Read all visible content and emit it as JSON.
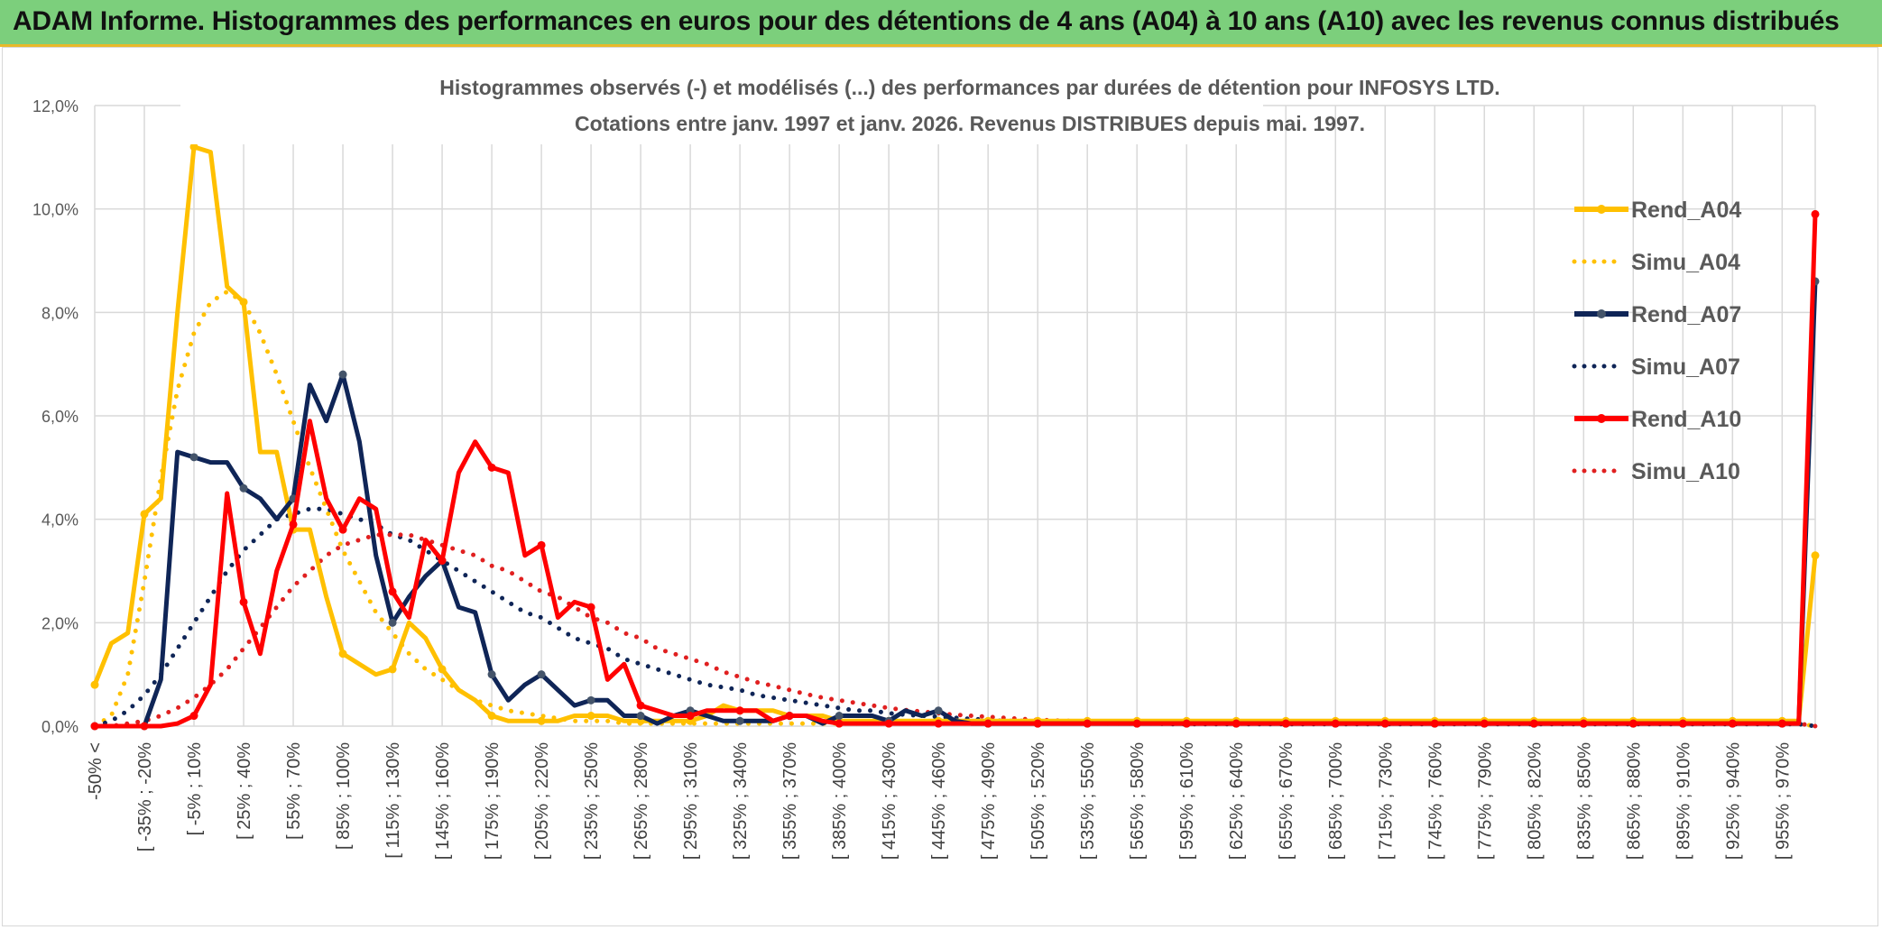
{
  "header": {
    "title": "ADAM Informe. Histogrammes des performances en euros pour des détentions de 4 ans (A04) à 10 ans (A10) avec les revenus connus distribués"
  },
  "chart_data": {
    "type": "line",
    "title": "Histogrammes observés (-) et modélisés (...) des performances par durées de détention pour INFOSYS LTD.",
    "subtitle": "Cotations entre janv. 1997 et janv. 2026. Revenus DISTRIBUES depuis mai. 1997.",
    "xlabel": "",
    "ylabel": "",
    "ylim": [
      0,
      12
    ],
    "yticks": [
      "0,0%",
      "2,0%",
      "4,0%",
      "6,0%",
      "8,0%",
      "10,0%",
      "12,0%"
    ],
    "legend_position": "right",
    "grid": true,
    "x_tick_labels": [
      "-50% <",
      "[ -35% ; -20%",
      "[ -5% ; 10%",
      "[ 25% ; 40%",
      "[ 55% ; 70%",
      "[ 85% ; 100%",
      "[ 115% ; 130%",
      "[ 145% ; 160%",
      "[ 175% ; 190%",
      "[ 205% ; 220%",
      "[ 235% ; 250%",
      "[ 265% ; 280%",
      "[ 295% ; 310%",
      "[ 325% ; 340%",
      "[ 355% ; 370%",
      "[ 385% ; 400%",
      "[ 415% ; 430%",
      "[ 445% ; 460%",
      "[ 475% ; 490%",
      "[ 505% ; 520%",
      "[ 535% ; 550%",
      "[ 565% ; 580%",
      "[ 595% ; 610%",
      "[ 625% ; 640%",
      "[ 655% ; 670%",
      "[ 685% ; 700%",
      "[ 715% ; 730%",
      "[ 745% ; 760%",
      "[ 775% ; 790%",
      "[ 805% ; 820%",
      "[ 835% ; 850%",
      "[ 865% ; 880%",
      "[ 895% ; 910%",
      "[ 925% ; 940%",
      "[ 955% ; 970%"
    ],
    "series": [
      {
        "name": "Rend_A04",
        "style": "solid",
        "color": "#ffc000",
        "values": [
          0.8,
          1.6,
          1.8,
          4.1,
          4.4,
          8.0,
          11.2,
          11.1,
          8.5,
          8.2,
          5.3,
          5.3,
          3.8,
          3.8,
          2.5,
          1.4,
          1.2,
          1.0,
          1.1,
          2.0,
          1.7,
          1.1,
          0.7,
          0.5,
          0.2,
          0.1,
          0.1,
          0.1,
          0.1,
          0.2,
          0.2,
          0.2,
          0.1,
          0.1,
          0.1,
          0.1,
          0.1,
          0.2,
          0.4,
          0.3,
          0.3,
          0.3,
          0.2,
          0.2,
          0.2,
          0.1,
          0.1,
          0.1,
          0.1,
          0.1,
          0.1,
          0.1,
          0.1,
          0.1,
          0.1,
          0.1,
          0.1,
          0.1,
          0.1,
          0.1,
          0.1,
          0.1,
          0.1,
          0.1,
          0.1,
          0.1,
          0.1,
          0.1,
          0.1,
          0.1,
          0.1,
          0.1,
          0.1,
          0.1,
          0.1,
          0.1,
          0.1,
          0.1,
          0.1,
          0.1,
          0.1,
          0.1,
          0.1,
          0.1,
          0.1,
          0.1,
          0.1,
          0.1,
          0.1,
          0.1,
          0.1,
          0.1,
          0.1,
          0.1,
          0.1,
          0.1,
          0.1,
          0.1,
          0.1,
          0.1,
          0.1,
          0.1,
          0.1,
          0.1,
          3.3
        ]
      },
      {
        "name": "Simu_A04",
        "style": "dotted",
        "color": "#ffc000",
        "values": [
          0.0,
          0.2,
          1.0,
          2.8,
          4.8,
          6.5,
          7.6,
          8.2,
          8.4,
          8.2,
          7.6,
          6.8,
          5.9,
          5.0,
          4.2,
          3.4,
          2.8,
          2.2,
          1.8,
          1.4,
          1.1,
          0.9,
          0.7,
          0.5,
          0.4,
          0.3,
          0.25,
          0.2,
          0.15,
          0.1,
          0.1,
          0.1,
          0.05,
          0.05,
          0.05,
          0.05,
          0.05,
          0.05,
          0.05,
          0.05,
          0.05,
          0.05,
          0.05,
          0.05,
          0.05,
          0.05,
          0.05,
          0.05,
          0.05,
          0.05,
          0.05,
          0.05,
          0.05,
          0.05,
          0.05,
          0.05,
          0.05,
          0.05,
          0.05,
          0.05,
          0.05,
          0.05,
          0.05,
          0.05,
          0.05,
          0.05,
          0.05,
          0.05,
          0.05,
          0.05,
          0.05,
          0.05,
          0.05,
          0.05,
          0.05,
          0.05,
          0.05,
          0.05,
          0.05,
          0.05,
          0.05,
          0.05,
          0.05,
          0.05,
          0.05,
          0.05,
          0.05,
          0.05,
          0.05,
          0.05,
          0.05,
          0.05,
          0.05,
          0.05,
          0.05,
          0.05,
          0.05,
          0.05,
          0.05,
          0.05,
          0.05,
          0.05,
          0.05,
          0.05,
          0.0
        ]
      },
      {
        "name": "Rend_A07",
        "style": "solid",
        "color": "#0f2557",
        "values": [
          0.0,
          0.0,
          0.0,
          0.0,
          0.9,
          5.3,
          5.2,
          5.1,
          5.1,
          4.6,
          4.4,
          4.0,
          4.4,
          6.6,
          5.9,
          6.8,
          5.5,
          3.3,
          2.0,
          2.5,
          2.9,
          3.2,
          2.3,
          2.2,
          1.0,
          0.5,
          0.8,
          1.0,
          0.7,
          0.4,
          0.5,
          0.5,
          0.2,
          0.2,
          0.05,
          0.2,
          0.3,
          0.2,
          0.1,
          0.1,
          0.1,
          0.1,
          0.2,
          0.2,
          0.05,
          0.2,
          0.2,
          0.2,
          0.1,
          0.3,
          0.2,
          0.3,
          0.1,
          0.05,
          0.05,
          0.05,
          0.05,
          0.05,
          0.05,
          0.05,
          0.05,
          0.05,
          0.05,
          0.05,
          0.05,
          0.05,
          0.05,
          0.05,
          0.05,
          0.05,
          0.05,
          0.05,
          0.05,
          0.05,
          0.05,
          0.05,
          0.05,
          0.05,
          0.05,
          0.05,
          0.05,
          0.05,
          0.05,
          0.05,
          0.05,
          0.05,
          0.05,
          0.05,
          0.05,
          0.05,
          0.05,
          0.05,
          0.05,
          0.05,
          0.05,
          0.05,
          0.05,
          0.05,
          0.05,
          0.05,
          0.05,
          0.05,
          0.05,
          0.05,
          8.6
        ]
      },
      {
        "name": "Simu_A07",
        "style": "dotted",
        "color": "#0f2557",
        "values": [
          0.0,
          0.1,
          0.3,
          0.6,
          1.0,
          1.5,
          2.0,
          2.5,
          3.0,
          3.4,
          3.7,
          4.0,
          4.1,
          4.2,
          4.2,
          4.1,
          4.0,
          3.9,
          3.7,
          3.6,
          3.4,
          3.2,
          3.0,
          2.8,
          2.6,
          2.4,
          2.2,
          2.1,
          1.9,
          1.7,
          1.6,
          1.5,
          1.3,
          1.2,
          1.1,
          1.0,
          0.9,
          0.8,
          0.75,
          0.7,
          0.6,
          0.55,
          0.5,
          0.45,
          0.4,
          0.35,
          0.3,
          0.3,
          0.25,
          0.22,
          0.2,
          0.18,
          0.16,
          0.14,
          0.12,
          0.1,
          0.1,
          0.09,
          0.08,
          0.07,
          0.06,
          0.05,
          0.05,
          0.05,
          0.05,
          0.04,
          0.04,
          0.04,
          0.04,
          0.04,
          0.04,
          0.04,
          0.04,
          0.04,
          0.04,
          0.04,
          0.04,
          0.04,
          0.04,
          0.04,
          0.04,
          0.04,
          0.04,
          0.04,
          0.04,
          0.04,
          0.04,
          0.04,
          0.04,
          0.04,
          0.04,
          0.04,
          0.04,
          0.04,
          0.04,
          0.04,
          0.04,
          0.04,
          0.04,
          0.04,
          0.04,
          0.04,
          0.04,
          0.04,
          0.0
        ]
      },
      {
        "name": "Rend_A10",
        "style": "solid",
        "color": "#ff0000",
        "values": [
          0.0,
          0.0,
          0.0,
          0.0,
          0.0,
          0.05,
          0.2,
          0.8,
          4.5,
          2.4,
          1.4,
          3.0,
          3.9,
          5.9,
          4.4,
          3.8,
          4.4,
          4.2,
          2.6,
          2.1,
          3.6,
          3.2,
          4.9,
          5.5,
          5.0,
          4.9,
          3.3,
          3.5,
          2.1,
          2.4,
          2.3,
          0.9,
          1.2,
          0.4,
          0.3,
          0.2,
          0.2,
          0.3,
          0.3,
          0.3,
          0.3,
          0.1,
          0.2,
          0.2,
          0.1,
          0.05,
          0.05,
          0.05,
          0.05,
          0.05,
          0.05,
          0.05,
          0.05,
          0.05,
          0.05,
          0.05,
          0.05,
          0.05,
          0.05,
          0.05,
          0.05,
          0.05,
          0.05,
          0.05,
          0.05,
          0.05,
          0.05,
          0.05,
          0.05,
          0.05,
          0.05,
          0.05,
          0.05,
          0.05,
          0.05,
          0.05,
          0.05,
          0.05,
          0.05,
          0.05,
          0.05,
          0.05,
          0.05,
          0.05,
          0.05,
          0.05,
          0.05,
          0.05,
          0.05,
          0.05,
          0.05,
          0.05,
          0.05,
          0.05,
          0.05,
          0.05,
          0.05,
          0.05,
          0.05,
          0.05,
          0.05,
          0.05,
          0.05,
          0.05,
          9.9
        ]
      },
      {
        "name": "Simu_A10",
        "style": "dotted",
        "color": "#e02020",
        "values": [
          0.0,
          0.0,
          0.05,
          0.1,
          0.2,
          0.35,
          0.55,
          0.8,
          1.1,
          1.5,
          1.9,
          2.3,
          2.7,
          3.0,
          3.3,
          3.5,
          3.6,
          3.7,
          3.7,
          3.7,
          3.6,
          3.5,
          3.4,
          3.3,
          3.1,
          3.0,
          2.8,
          2.6,
          2.5,
          2.3,
          2.1,
          2.0,
          1.8,
          1.7,
          1.5,
          1.4,
          1.3,
          1.2,
          1.05,
          0.95,
          0.85,
          0.78,
          0.7,
          0.62,
          0.55,
          0.5,
          0.45,
          0.4,
          0.35,
          0.31,
          0.28,
          0.25,
          0.22,
          0.2,
          0.18,
          0.16,
          0.14,
          0.12,
          0.11,
          0.1,
          0.09,
          0.08,
          0.07,
          0.06,
          0.06,
          0.05,
          0.05,
          0.05,
          0.05,
          0.05,
          0.05,
          0.05,
          0.05,
          0.05,
          0.05,
          0.05,
          0.05,
          0.05,
          0.05,
          0.05,
          0.05,
          0.05,
          0.05,
          0.05,
          0.05,
          0.05,
          0.05,
          0.05,
          0.05,
          0.05,
          0.05,
          0.05,
          0.05,
          0.05,
          0.05,
          0.05,
          0.05,
          0.05,
          0.05,
          0.05,
          0.05,
          0.05,
          0.05,
          0.05,
          0.0
        ]
      }
    ]
  }
}
